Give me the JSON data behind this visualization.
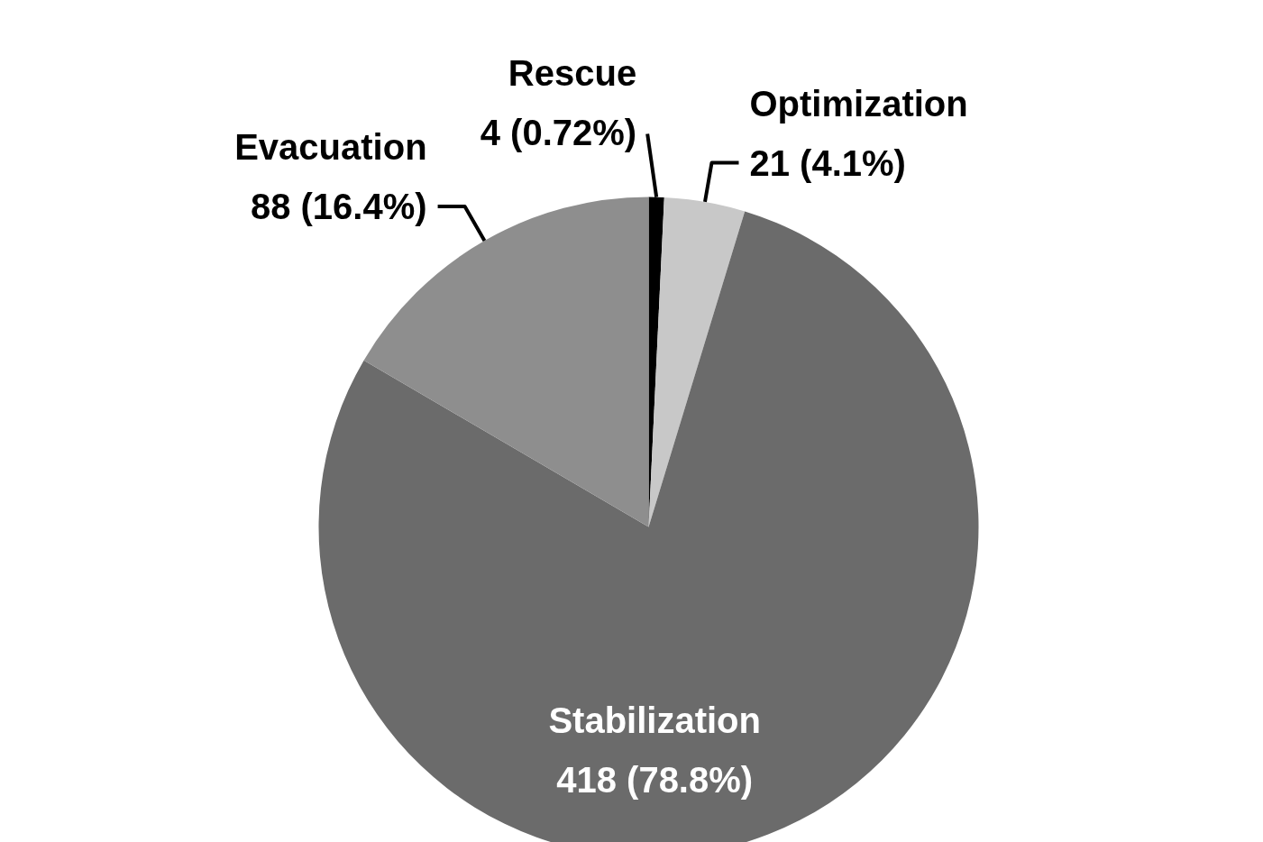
{
  "chart_data": {
    "type": "pie",
    "categories": [
      "Rescue",
      "Optimization",
      "Stabilization",
      "Evacuation"
    ],
    "values": [
      4,
      21,
      418,
      88
    ],
    "colors": [
      "#000000",
      "#c8c8c8",
      "#6b6b6b",
      "#8e8e8e"
    ],
    "value_labels": [
      "4 (0.72%)",
      "21 (4.1%)",
      "418 (78.8%)",
      "88 (16.4%)"
    ]
  }
}
